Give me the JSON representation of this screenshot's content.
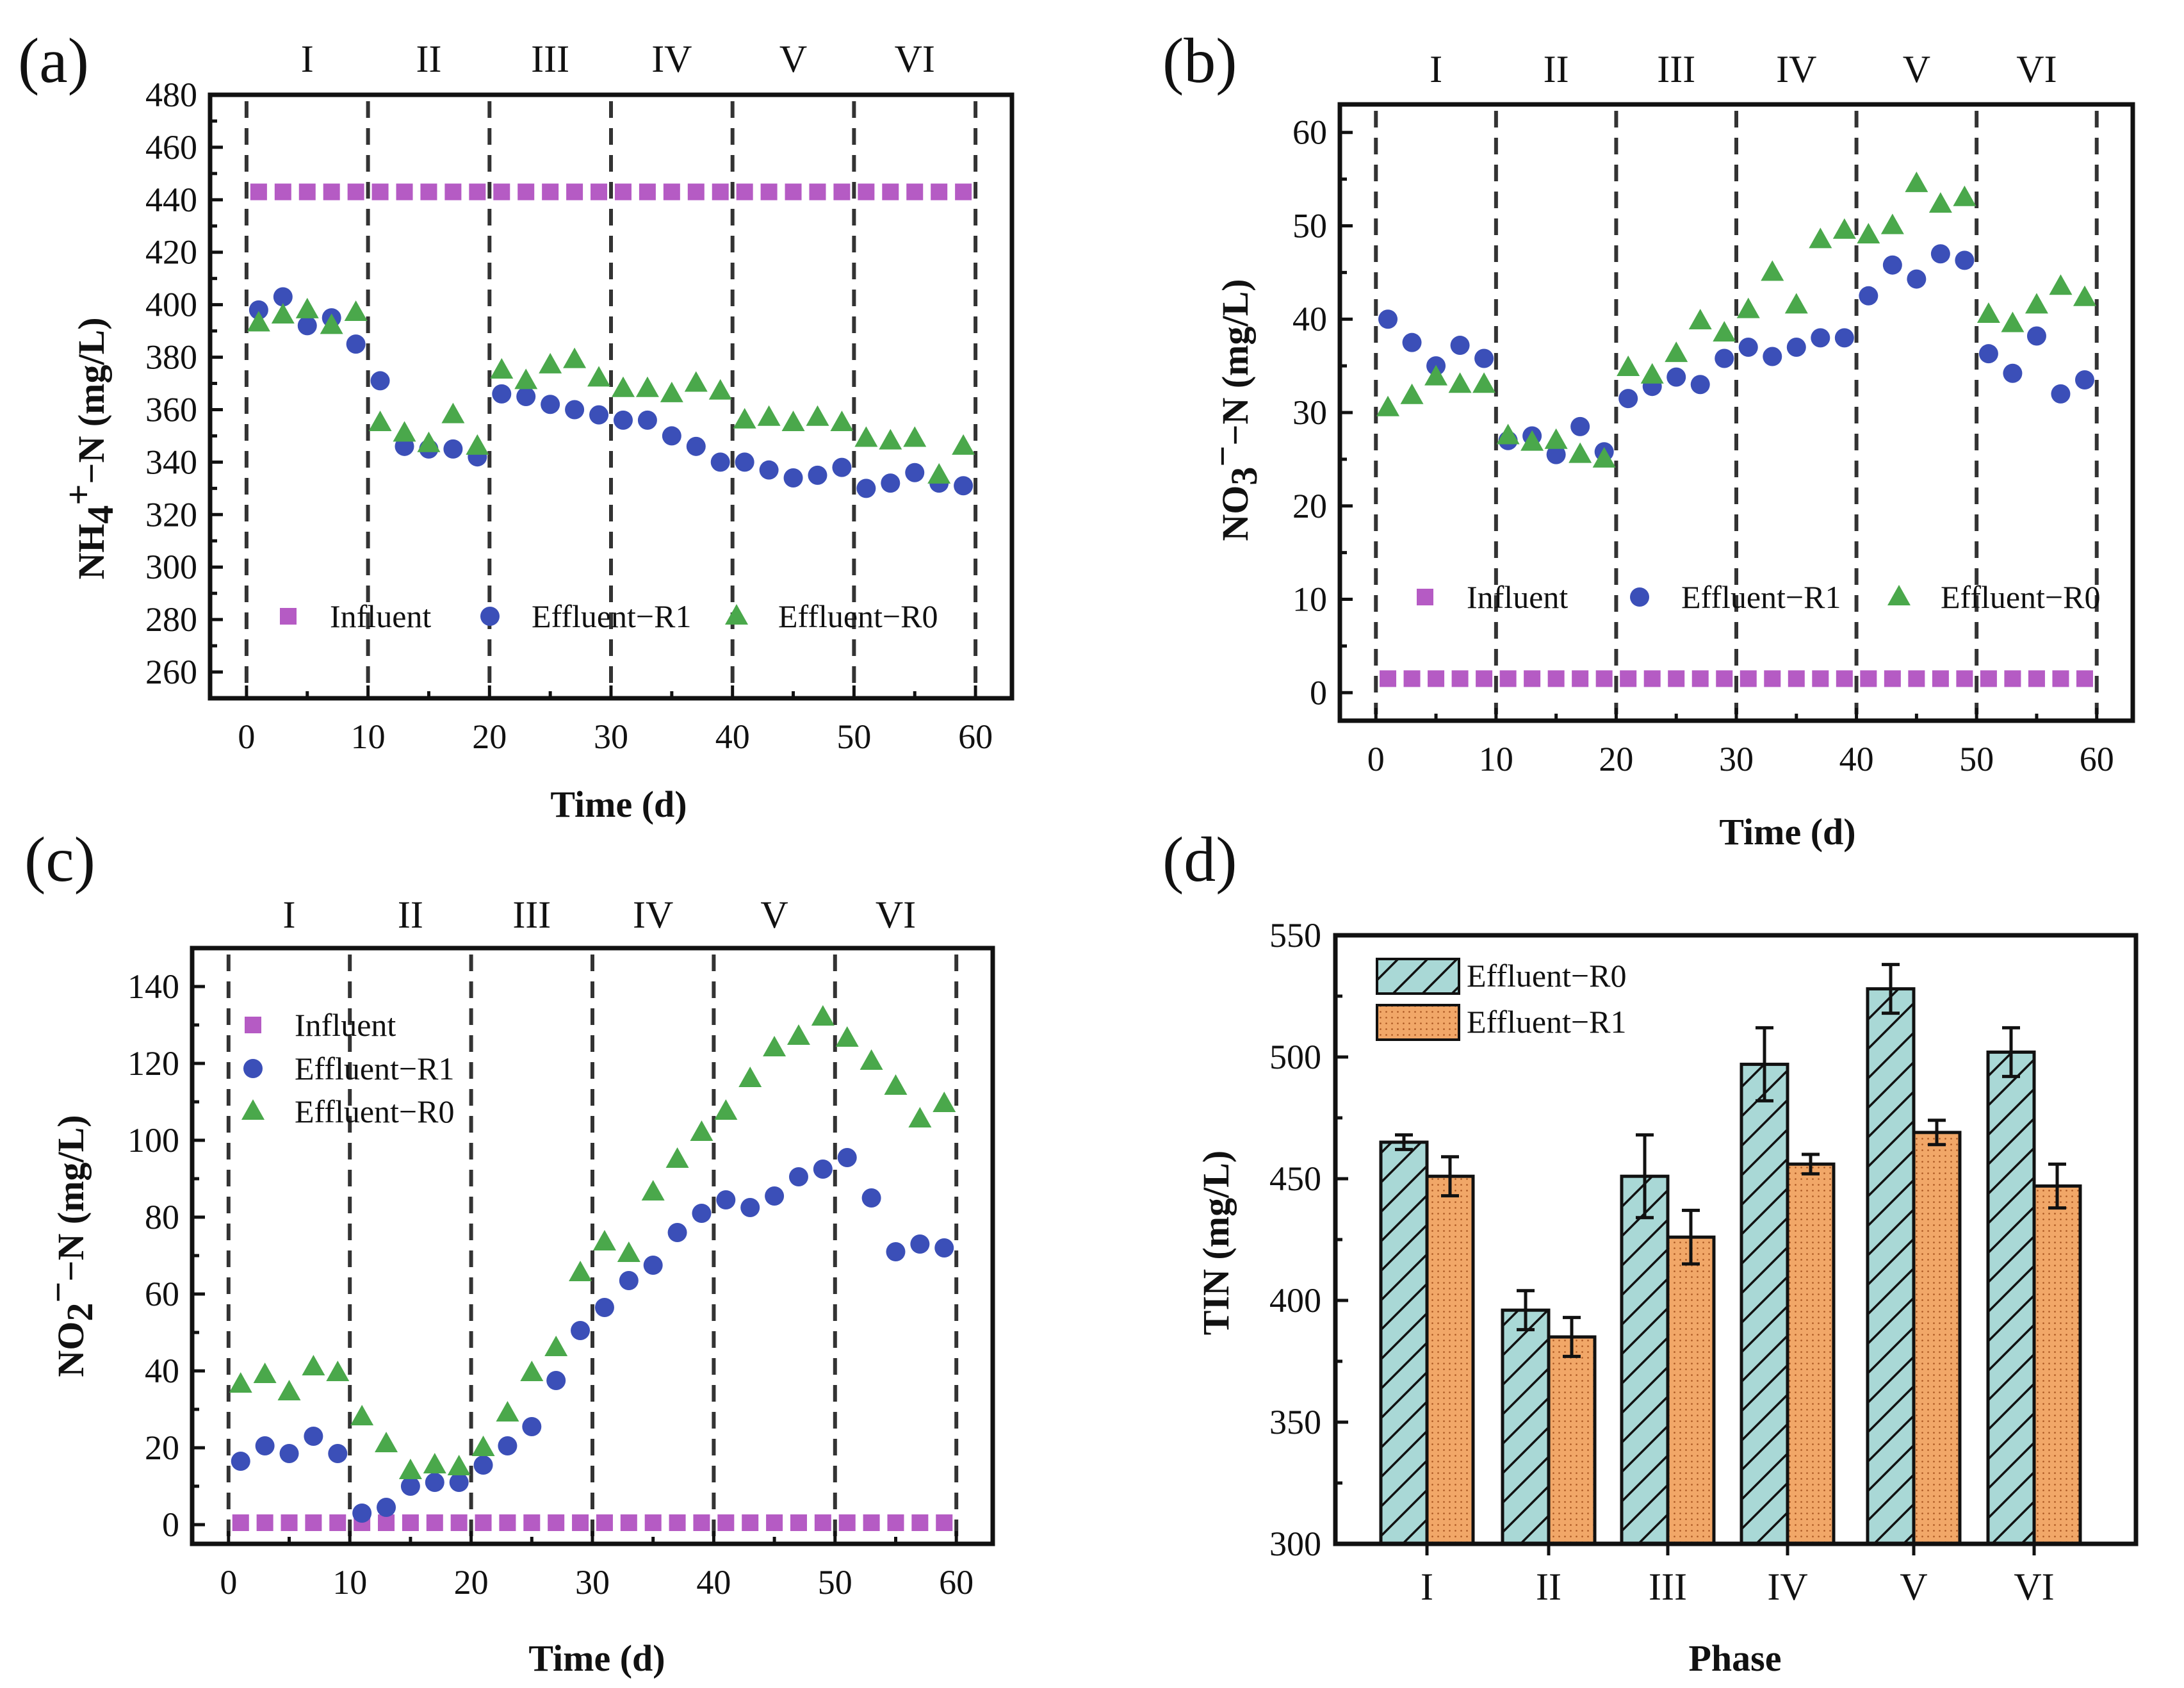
{
  "colors": {
    "influent": "#b55bc4",
    "r1": "#3b4fb8",
    "r0": "#4aa84b",
    "bar_r0": "#a9d8d6",
    "bar_r1": "#f1a768"
  },
  "chart_data": [
    {
      "id": "a",
      "panel_label": "(a)",
      "type": "scatter",
      "xlabel": "Time (d)",
      "ylabel": "NH4+−N (mg/L)",
      "ylabel_parts": {
        "main": "NH",
        "sub": "4",
        "sup": "+",
        "rest": "−N (mg/L)"
      },
      "xlim": [
        -3,
        63
      ],
      "ylim": [
        250,
        480
      ],
      "xticks": [
        "0",
        "10",
        "20",
        "30",
        "40",
        "50",
        "60"
      ],
      "yticks": [
        "260",
        "280",
        "300",
        "320",
        "340",
        "360",
        "380",
        "400",
        "420",
        "440",
        "460",
        "480"
      ],
      "phases": [
        "I",
        "II",
        "III",
        "IV",
        "V",
        "VI"
      ],
      "dividers": [
        0,
        10,
        20,
        30,
        40,
        50,
        60
      ],
      "legend_layout": "row",
      "series": [
        {
          "name": "Influent",
          "marker": "square",
          "x": [
            1,
            3,
            5,
            7,
            9,
            11,
            13,
            15,
            17,
            19,
            21,
            23,
            25,
            27,
            29,
            31,
            33,
            35,
            37,
            39,
            41,
            43,
            45,
            47,
            49,
            51,
            53,
            55,
            57,
            59
          ],
          "y": [
            443,
            443,
            443,
            443,
            443,
            443,
            443,
            443,
            443,
            443,
            443,
            443,
            443,
            443,
            443,
            443,
            443,
            443,
            443,
            443,
            443,
            443,
            443,
            443,
            443,
            443,
            443,
            443,
            443,
            443
          ]
        },
        {
          "name": "Effluent−R1",
          "marker": "circle",
          "x": [
            1,
            3,
            5,
            7,
            9,
            11,
            13,
            15,
            17,
            19,
            21,
            23,
            25,
            27,
            29,
            31,
            33,
            35,
            37,
            39,
            41,
            43,
            45,
            47,
            49,
            51,
            53,
            55,
            57,
            59
          ],
          "y": [
            398,
            403,
            392,
            395,
            385,
            371,
            346,
            345,
            345,
            342,
            366,
            365,
            362,
            360,
            358,
            356,
            356,
            350,
            346,
            340,
            340,
            337,
            334,
            335,
            338,
            330,
            332,
            336,
            332,
            331
          ]
        },
        {
          "name": "Effluent−R0",
          "marker": "triangle",
          "x": [
            1,
            3,
            5,
            7,
            9,
            11,
            13,
            15,
            17,
            19,
            21,
            23,
            25,
            27,
            29,
            31,
            33,
            35,
            37,
            39,
            41,
            43,
            45,
            47,
            49,
            51,
            53,
            55,
            57,
            59
          ],
          "y": [
            393,
            396,
            398,
            392,
            397,
            355,
            351,
            347,
            358,
            346,
            375,
            371,
            377,
            379,
            372,
            368,
            368,
            366,
            370,
            367,
            356,
            357,
            355,
            357,
            355,
            349,
            348,
            349,
            335,
            346
          ]
        }
      ]
    },
    {
      "id": "b",
      "panel_label": "(b)",
      "type": "scatter",
      "xlabel": "Time (d)",
      "ylabel": "NO3−−N (mg/L)",
      "ylabel_parts": {
        "main": "NO",
        "sub": "3",
        "sup": "−",
        "rest": "−N (mg/L)"
      },
      "xlim": [
        -3,
        63
      ],
      "ylim": [
        -3,
        63
      ],
      "xticks": [
        "0",
        "10",
        "20",
        "30",
        "40",
        "50",
        "60"
      ],
      "yticks": [
        "0",
        "10",
        "20",
        "30",
        "40",
        "50",
        "60"
      ],
      "phases": [
        "I",
        "II",
        "III",
        "IV",
        "V",
        "VI"
      ],
      "dividers": [
        0,
        10,
        20,
        30,
        40,
        50,
        60
      ],
      "legend_layout": "row",
      "series": [
        {
          "name": "Influent",
          "marker": "square",
          "x": [
            1,
            3,
            5,
            7,
            9,
            11,
            13,
            15,
            17,
            19,
            21,
            23,
            25,
            27,
            29,
            31,
            33,
            35,
            37,
            39,
            41,
            43,
            45,
            47,
            49,
            51,
            53,
            55,
            57,
            59
          ],
          "y": [
            1.5,
            1.5,
            1.5,
            1.5,
            1.5,
            1.5,
            1.5,
            1.5,
            1.5,
            1.5,
            1.5,
            1.5,
            1.5,
            1.5,
            1.5,
            1.5,
            1.5,
            1.5,
            1.5,
            1.5,
            1.5,
            1.5,
            1.5,
            1.5,
            1.5,
            1.5,
            1.5,
            1.5,
            1.5,
            1.5
          ]
        },
        {
          "name": "Effluent−R1",
          "marker": "circle",
          "x": [
            1,
            3,
            5,
            7,
            9,
            11,
            13,
            15,
            17,
            19,
            21,
            23,
            25,
            27,
            29,
            31,
            33,
            35,
            37,
            39,
            41,
            43,
            45,
            47,
            49,
            51,
            53,
            55,
            57,
            59
          ],
          "y": [
            40,
            37.5,
            35,
            37.2,
            35.8,
            27,
            27.5,
            25.5,
            28.5,
            25.8,
            31.5,
            32.8,
            33.8,
            33,
            35.8,
            37,
            36,
            37,
            38,
            38,
            42.5,
            45.8,
            44.3,
            47,
            46.3,
            36.3,
            34.2,
            38.2,
            32,
            33.5
          ]
        },
        {
          "name": "Effluent−R0",
          "marker": "triangle",
          "x": [
            1,
            3,
            5,
            7,
            9,
            11,
            13,
            15,
            17,
            19,
            21,
            23,
            25,
            27,
            29,
            31,
            33,
            35,
            37,
            39,
            41,
            43,
            45,
            47,
            49,
            51,
            53,
            55,
            57,
            59
          ],
          "y": [
            30.5,
            31.8,
            33.8,
            33,
            33,
            27.5,
            26.8,
            27,
            25.5,
            25,
            34.8,
            34,
            36.3,
            39.8,
            38.5,
            41,
            45,
            41.5,
            48.5,
            49.5,
            49,
            50,
            54.5,
            52.3,
            53,
            40.5,
            39.5,
            41.5,
            43.5,
            42.3
          ]
        }
      ]
    },
    {
      "id": "c",
      "panel_label": "(c)",
      "type": "scatter",
      "xlabel": "Time (d)",
      "ylabel": "NO2−−N (mg/L)",
      "ylabel_parts": {
        "main": "NO",
        "sub": "2",
        "sup": "−",
        "rest": "−N (mg/L)"
      },
      "xlim": [
        -3,
        63
      ],
      "ylim": [
        -5,
        150
      ],
      "xticks": [
        "0",
        "10",
        "20",
        "30",
        "40",
        "50",
        "60"
      ],
      "yticks": [
        "0",
        "20",
        "40",
        "60",
        "80",
        "100",
        "120",
        "140"
      ],
      "phases": [
        "I",
        "II",
        "III",
        "IV",
        "V",
        "VI"
      ],
      "dividers": [
        0,
        10,
        20,
        30,
        40,
        50,
        60
      ],
      "legend_layout": "column",
      "series": [
        {
          "name": "Influent",
          "marker": "square",
          "x": [
            1,
            3,
            5,
            7,
            9,
            11,
            13,
            15,
            17,
            19,
            21,
            23,
            25,
            27,
            29,
            31,
            33,
            35,
            37,
            39,
            41,
            43,
            45,
            47,
            49,
            51,
            53,
            55,
            57,
            59
          ],
          "y": [
            0.5,
            0.5,
            0.5,
            0.5,
            0.5,
            0.5,
            0.5,
            0.5,
            0.5,
            0.5,
            0.5,
            0.5,
            0.5,
            0.5,
            0.5,
            0.5,
            0.5,
            0.5,
            0.5,
            0.5,
            0.5,
            0.5,
            0.5,
            0.5,
            0.5,
            0.5,
            0.5,
            0.5,
            0.5,
            0.5
          ]
        },
        {
          "name": "Effluent−R1",
          "marker": "circle",
          "x": [
            1,
            3,
            5,
            7,
            9,
            11,
            13,
            15,
            17,
            19,
            21,
            23,
            25,
            27,
            29,
            31,
            33,
            35,
            37,
            39,
            41,
            43,
            45,
            47,
            49,
            51,
            53,
            55,
            57,
            59
          ],
          "y": [
            16.5,
            20.5,
            18.5,
            23,
            18.5,
            3,
            4.5,
            10,
            11,
            11,
            15.5,
            20.5,
            25.5,
            37.5,
            50.5,
            56.5,
            63.5,
            67.5,
            76,
            81,
            84.5,
            82.5,
            85.5,
            90.5,
            92.5,
            95.5,
            85,
            71,
            73,
            72
          ]
        },
        {
          "name": "Effluent−R0",
          "marker": "triangle",
          "x": [
            1,
            3,
            5,
            7,
            9,
            11,
            13,
            15,
            17,
            19,
            21,
            23,
            25,
            27,
            29,
            31,
            33,
            35,
            37,
            39,
            41,
            43,
            45,
            47,
            49,
            51,
            53,
            55,
            57,
            59
          ],
          "y": [
            36.5,
            39,
            34.5,
            41,
            39.5,
            28,
            21,
            14,
            15.5,
            15,
            20,
            29,
            39.5,
            46,
            65.5,
            73.5,
            70.5,
            86.5,
            95,
            102,
            107.5,
            116,
            124,
            127,
            132,
            126.5,
            120.5,
            114,
            105.5,
            109.5
          ]
        }
      ]
    },
    {
      "id": "d",
      "panel_label": "(d)",
      "type": "bar",
      "xlabel": "Phase",
      "ylabel": "TIN (mg/L)",
      "categories": [
        "I",
        "II",
        "III",
        "IV",
        "V",
        "VI"
      ],
      "ylim": [
        300,
        550
      ],
      "yticks": [
        "300",
        "350",
        "400",
        "450",
        "500",
        "550"
      ],
      "series": [
        {
          "name": "Effluent−R0",
          "pattern": "hatch",
          "values": [
            465,
            396,
            451,
            497,
            528,
            502
          ],
          "errors": [
            3,
            8,
            17,
            15,
            10,
            10
          ]
        },
        {
          "name": "Effluent−R1",
          "pattern": "dots",
          "values": [
            451,
            385,
            426,
            456,
            469,
            447
          ],
          "errors": [
            8,
            8,
            11,
            4,
            5,
            9
          ]
        }
      ]
    }
  ]
}
